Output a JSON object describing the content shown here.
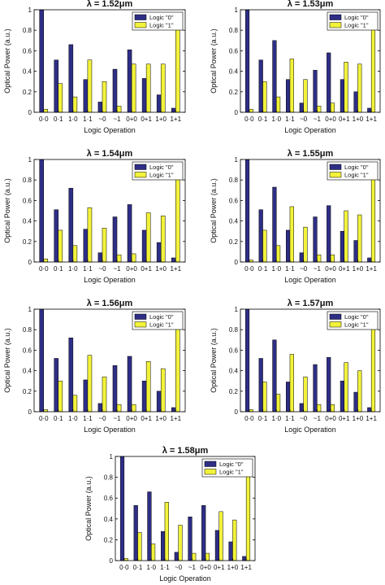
{
  "colors": {
    "logic0": "#2E2E86",
    "logic1": "#F2F23A",
    "axis": "#000000"
  },
  "chart_data": [
    {
      "type": "bar",
      "title": "λ = 1.52μm",
      "xlabel": "Logic Operation",
      "ylabel": "Optical Power (a.u.)",
      "categories": [
        "0·0",
        "0·1",
        "1·0",
        "1·1",
        "~0",
        "~1",
        "0+0",
        "0+1",
        "1+0",
        "1+1"
      ],
      "ylim": [
        0,
        1
      ],
      "yticks": [
        "0",
        "0.2",
        "0.4",
        "0.6",
        "0.8",
        "1"
      ],
      "legend": "top-right",
      "series": [
        {
          "name": "Logic \"0\"",
          "values": [
            1.0,
            0.51,
            0.66,
            0.32,
            0.1,
            0.42,
            0.61,
            0.33,
            0.17,
            0.04
          ]
        },
        {
          "name": "Logic \"1\"",
          "values": [
            0.03,
            0.28,
            0.15,
            0.51,
            0.3,
            0.06,
            0.47,
            0.47,
            0.47,
            0.96
          ]
        }
      ]
    },
    {
      "type": "bar",
      "title": "λ = 1.53μm",
      "xlabel": "Logic Operation",
      "ylabel": "Optical Power (a.u.)",
      "categories": [
        "0·0",
        "0·1",
        "1·0",
        "1·1",
        "~0",
        "~1",
        "0+0",
        "0+1",
        "1+0",
        "1+1"
      ],
      "ylim": [
        0,
        1
      ],
      "yticks": [
        "0",
        "0.2",
        "0.4",
        "0.6",
        "0.8",
        "1"
      ],
      "legend": "top-right",
      "series": [
        {
          "name": "Logic \"0\"",
          "values": [
            1.0,
            0.51,
            0.7,
            0.32,
            0.09,
            0.41,
            0.58,
            0.32,
            0.2,
            0.04
          ]
        },
        {
          "name": "Logic \"1\"",
          "values": [
            0.03,
            0.3,
            0.15,
            0.52,
            0.32,
            0.06,
            0.09,
            0.49,
            0.47,
            0.95
          ]
        }
      ]
    },
    {
      "type": "bar",
      "title": "λ = 1.54μm",
      "xlabel": "Logic Operation",
      "ylabel": "Optical Power (a.u.)",
      "categories": [
        "0·0",
        "0·1",
        "1·0",
        "1·1",
        "~0",
        "~1",
        "0+0",
        "0+1",
        "1+0",
        "1+1"
      ],
      "ylim": [
        0,
        1
      ],
      "yticks": [
        "0",
        "0.2",
        "0.4",
        "0.6",
        "0.8",
        "1"
      ],
      "legend": "top-right",
      "series": [
        {
          "name": "Logic \"0\"",
          "values": [
            1.0,
            0.51,
            0.72,
            0.32,
            0.09,
            0.44,
            0.56,
            0.31,
            0.19,
            0.04
          ]
        },
        {
          "name": "Logic \"1\"",
          "values": [
            0.03,
            0.31,
            0.16,
            0.53,
            0.33,
            0.07,
            0.08,
            0.48,
            0.45,
            0.94
          ]
        }
      ]
    },
    {
      "type": "bar",
      "title": "λ = 1.55μm",
      "xlabel": "Logic Operation",
      "ylabel": "Optical Power (a.u.)",
      "categories": [
        "0·0",
        "0·1",
        "1·0",
        "1·1",
        "~0",
        "~1",
        "0+0",
        "0+1",
        "1+0",
        "1+1"
      ],
      "ylim": [
        0,
        1
      ],
      "yticks": [
        "0",
        "0.2",
        "0.4",
        "0.6",
        "0.8",
        "1"
      ],
      "legend": "top-right",
      "series": [
        {
          "name": "Logic \"0\"",
          "values": [
            1.0,
            0.51,
            0.73,
            0.31,
            0.09,
            0.44,
            0.55,
            0.3,
            0.21,
            0.04
          ]
        },
        {
          "name": "Logic \"1\"",
          "values": [
            0.02,
            0.31,
            0.16,
            0.54,
            0.34,
            0.07,
            0.07,
            0.5,
            0.46,
            0.94
          ]
        }
      ]
    },
    {
      "type": "bar",
      "title": "λ = 1.56μm",
      "xlabel": "Logic Operation",
      "ylabel": "Optical Power (a.u.)",
      "categories": [
        "0·0",
        "0·1",
        "1·0",
        "1·1",
        "~0",
        "~1",
        "0+0",
        "0+1",
        "1+0",
        "1+1"
      ],
      "ylim": [
        0,
        1
      ],
      "yticks": [
        "0",
        "0.2",
        "0.4",
        "0.6",
        "0.8",
        "1"
      ],
      "legend": "top-right",
      "series": [
        {
          "name": "Logic \"0\"",
          "values": [
            1.0,
            0.52,
            0.72,
            0.31,
            0.08,
            0.45,
            0.54,
            0.3,
            0.2,
            0.04
          ]
        },
        {
          "name": "Logic \"1\"",
          "values": [
            0.02,
            0.3,
            0.16,
            0.55,
            0.34,
            0.07,
            0.07,
            0.49,
            0.42,
            0.94
          ]
        }
      ]
    },
    {
      "type": "bar",
      "title": "λ = 1.57μm",
      "xlabel": "Logic Operation",
      "ylabel": "Optical Power (a.u.)",
      "categories": [
        "0·0",
        "0·1",
        "1·0",
        "1·1",
        "~0",
        "~1",
        "0+0",
        "0+1",
        "1+0",
        "1+1"
      ],
      "ylim": [
        0,
        1
      ],
      "yticks": [
        "0",
        "0.2",
        "0.4",
        "0.6",
        "0.8",
        "1"
      ],
      "legend": "top-right",
      "series": [
        {
          "name": "Logic \"0\"",
          "values": [
            1.0,
            0.52,
            0.7,
            0.29,
            0.08,
            0.46,
            0.53,
            0.3,
            0.19,
            0.04
          ]
        },
        {
          "name": "Logic \"1\"",
          "values": [
            0.02,
            0.29,
            0.17,
            0.56,
            0.34,
            0.07,
            0.07,
            0.48,
            0.4,
            0.93
          ]
        }
      ]
    },
    {
      "type": "bar",
      "title": "λ = 1.58μm",
      "xlabel": "Logic Operation",
      "ylabel": "Optical Power (a.u.)",
      "categories": [
        "0·0",
        "0·1",
        "1·0",
        "1·1",
        "~0",
        "~1",
        "0+0",
        "0+1",
        "1+0",
        "1+1"
      ],
      "ylim": [
        0,
        1
      ],
      "yticks": [
        "0",
        "0.2",
        "0.4",
        "0.6",
        "0.8",
        "1"
      ],
      "legend": "top-right",
      "series": [
        {
          "name": "Logic \"0\"",
          "values": [
            1.0,
            0.53,
            0.66,
            0.28,
            0.08,
            0.42,
            0.53,
            0.29,
            0.18,
            0.04
          ]
        },
        {
          "name": "Logic \"1\"",
          "values": [
            0.02,
            0.27,
            0.16,
            0.56,
            0.34,
            0.07,
            0.07,
            0.47,
            0.39,
            0.93
          ]
        }
      ]
    }
  ]
}
